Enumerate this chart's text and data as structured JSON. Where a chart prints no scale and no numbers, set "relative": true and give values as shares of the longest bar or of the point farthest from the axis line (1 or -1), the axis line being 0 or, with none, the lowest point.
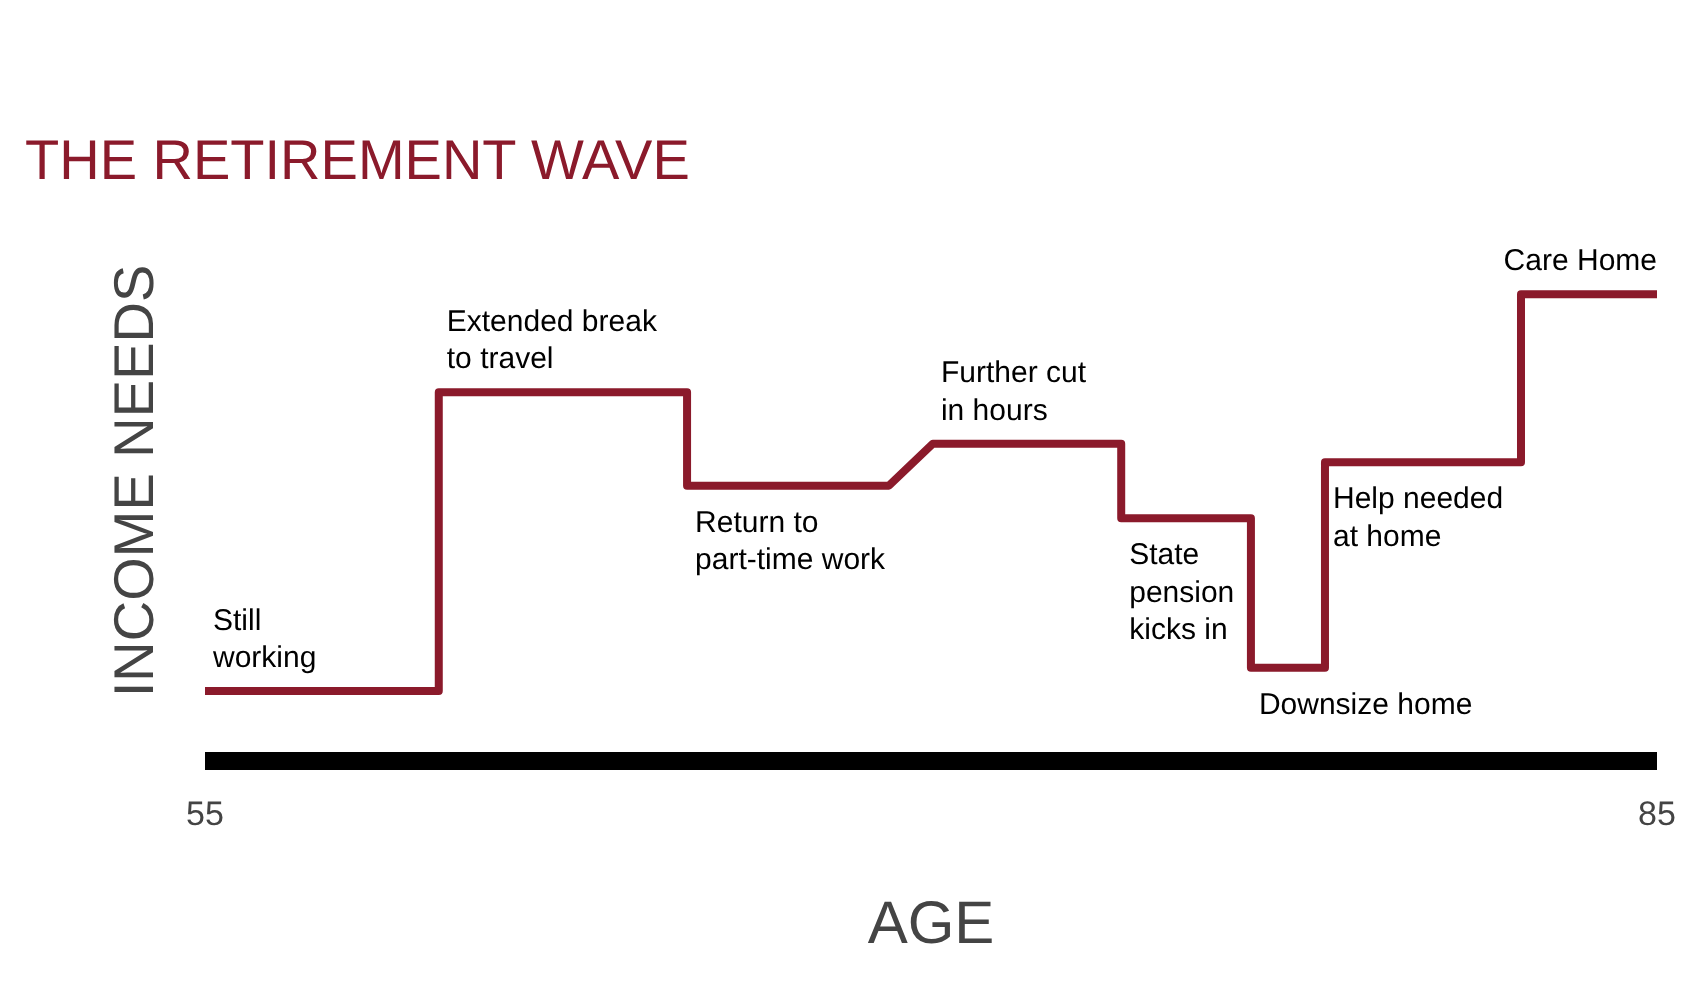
{
  "chart_data": {
    "type": "line",
    "title": "THE RETIREMENT WAVE",
    "xlabel": "AGE",
    "ylabel": "INCOME NEEDS",
    "relative": true,
    "xlim": [
      55,
      85
    ],
    "xticks": [
      55,
      85
    ],
    "series": [
      {
        "color": "#8b1a2b",
        "x": [
          55,
          59.83,
          59.83,
          64.96,
          64.96,
          69.13,
          70.04,
          73.93,
          73.93,
          76.61,
          76.61,
          78.14,
          78.14,
          82.19,
          82.19,
          85
        ],
        "values": [
          0.15,
          0.15,
          0.79,
          0.79,
          0.59,
          0.59,
          0.68,
          0.68,
          0.52,
          0.52,
          0.2,
          0.2,
          0.64,
          0.64,
          1,
          1
        ]
      }
    ],
    "annotations": [
      "Still\nworking",
      "Extended break\nto travel",
      "Return to\npart-time work",
      "Further cut\nin hours",
      "State\npension\nkicks in",
      "Downsize home",
      "Help needed\nat home",
      "Care Home"
    ]
  }
}
